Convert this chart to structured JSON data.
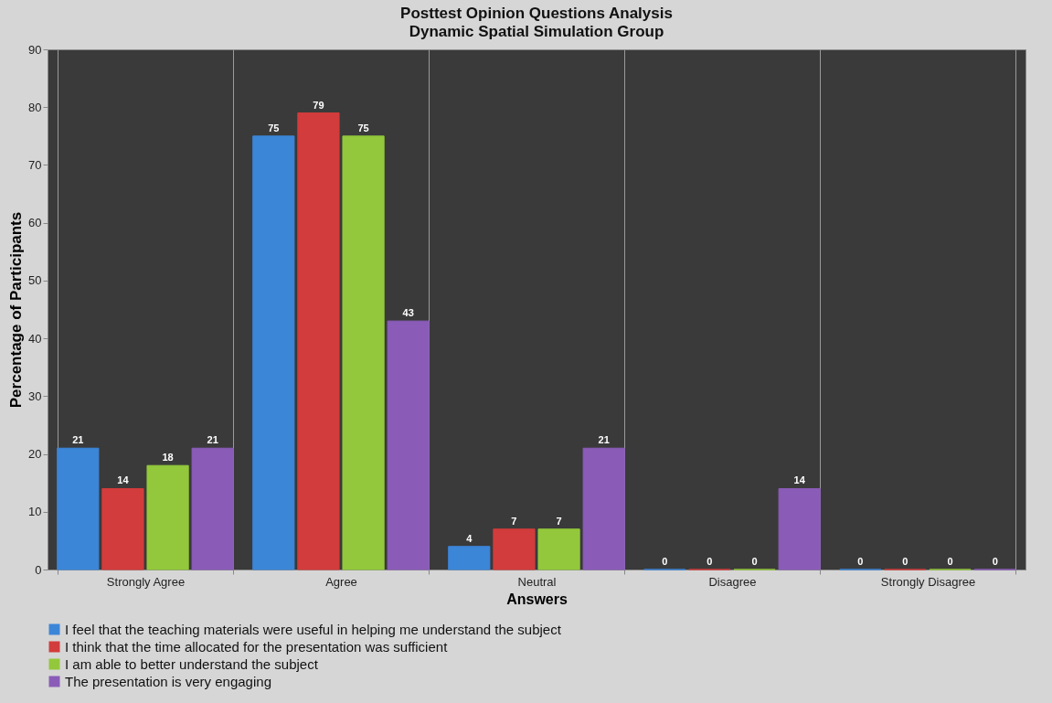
{
  "chart_data": {
    "type": "bar",
    "title": "Posttest Opinion Questions Analysis",
    "subtitle": "Dynamic Spatial Simulation Group",
    "xlabel": "Answers",
    "ylabel": "Percentage of Participants",
    "categories": [
      "Strongly Agree",
      "Agree",
      "Neutral",
      "Disagree",
      "Strongly Disagree"
    ],
    "series": [
      {
        "name": "I feel that the teaching materials were useful in helping me understand the subject",
        "color": "#3c86d8",
        "values": [
          21,
          75,
          4,
          0,
          0
        ]
      },
      {
        "name": "I think that the time allocated for the presentation was sufficient",
        "color": "#d33c3c",
        "values": [
          14,
          79,
          7,
          0,
          0
        ]
      },
      {
        "name": "I am able to better understand the subject",
        "color": "#93c83c",
        "values": [
          18,
          75,
          7,
          0,
          0
        ]
      },
      {
        "name": "The presentation is very engaging",
        "color": "#8a5cb8",
        "values": [
          21,
          43,
          21,
          14,
          0
        ]
      }
    ],
    "ylim": [
      0,
      90
    ],
    "yticks": [
      0,
      10,
      20,
      30,
      40,
      50,
      60,
      70,
      80,
      90
    ],
    "grid": "x",
    "legend": "bottom",
    "data_labels": true
  }
}
